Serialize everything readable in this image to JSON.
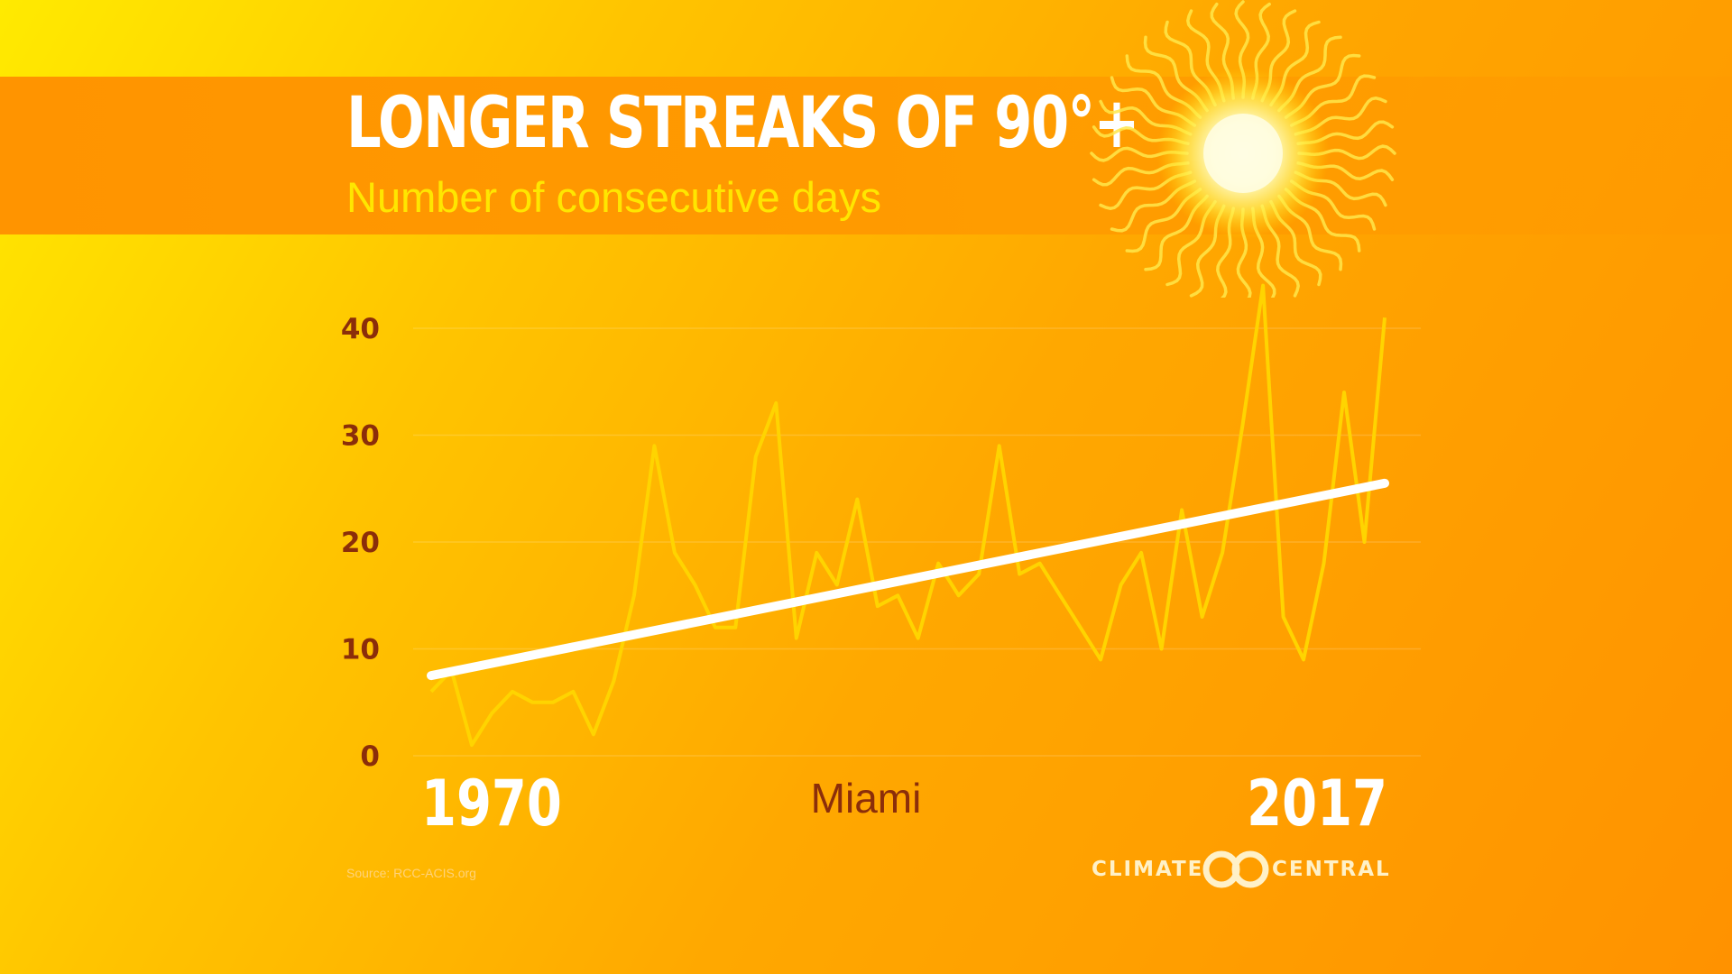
{
  "header": {
    "title": "LONGER STREAKS OF 90°+",
    "subtitle": "Number of consecutive days"
  },
  "labels": {
    "x_start": "1970",
    "x_end": "2017",
    "city": "Miami",
    "source": "Source: RCC-ACIS.org"
  },
  "logo": {
    "left_text": "CLIMATE",
    "right_text": "CENTRAL"
  },
  "colors": {
    "line": "#ffd400",
    "trend": "#ffffff",
    "tick_labels": "#8b2e0a",
    "sun_core": "#fffde0",
    "sun_rays": "#ffe84a"
  },
  "chart_data": {
    "type": "line",
    "title": "LONGER STREAKS OF 90°+",
    "subtitle": "Number of consecutive days",
    "ylim": [
      0,
      40
    ],
    "yticks": [
      0,
      10,
      20,
      30,
      40
    ],
    "grid": true,
    "xlim": [
      1970,
      2017
    ],
    "x": [
      1970,
      1971,
      1972,
      1973,
      1974,
      1975,
      1976,
      1977,
      1978,
      1979,
      1980,
      1981,
      1982,
      1983,
      1984,
      1985,
      1986,
      1987,
      1988,
      1989,
      1990,
      1991,
      1992,
      1993,
      1994,
      1995,
      1996,
      1997,
      1998,
      1999,
      2000,
      2001,
      2002,
      2003,
      2004,
      2005,
      2006,
      2007,
      2008,
      2009,
      2010,
      2011,
      2012,
      2013,
      2014,
      2015,
      2016,
      2017
    ],
    "series": [
      {
        "values": [
          6,
          8,
          1,
          4,
          6,
          5,
          5,
          6,
          2,
          7,
          15,
          29,
          19,
          16,
          12,
          12,
          28,
          33,
          11,
          19,
          16,
          24,
          14,
          15,
          11,
          18,
          15,
          17,
          29,
          17,
          18,
          15,
          12,
          9,
          16,
          19,
          10,
          23,
          13,
          19,
          31,
          44,
          13,
          9,
          18,
          34,
          20,
          41
        ]
      },
      {
        "values": [
          7.5,
          25.5
        ],
        "x": [
          1970,
          2017
        ],
        "kind": "trend"
      }
    ]
  }
}
